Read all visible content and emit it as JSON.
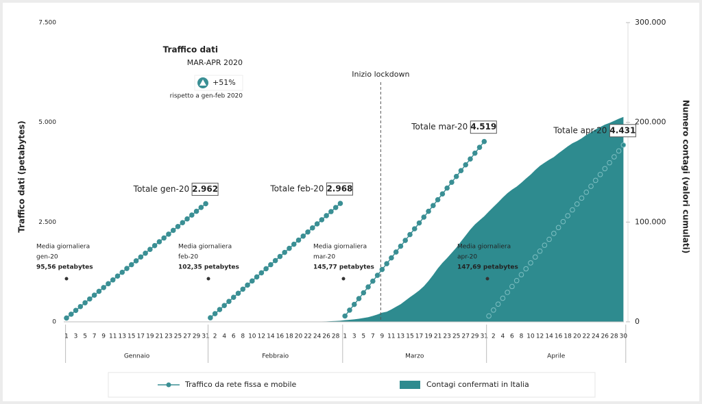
{
  "chart_data": {
    "type": "line",
    "inset": {
      "title": "Traffico dati",
      "subtitle": "MAR-APR 2020",
      "change": "+51%",
      "note": "rispetto a gen-feb 2020"
    },
    "y_label": "Traffico dati (petabytes)",
    "y2_label": "Numero contagi (valori cumulati)",
    "ylim": [
      0,
      7500
    ],
    "yticks": [
      0,
      {
        "value": 2500,
        "label": "2.500"
      },
      {
        "value": 5000,
        "label": "5.000"
      },
      {
        "value": 7500,
        "label": "7.500"
      }
    ],
    "y2lim": [
      0,
      300000
    ],
    "y2ticks": [
      0,
      {
        "value": 100000,
        "label": "100.000"
      },
      {
        "value": 200000,
        "label": "200.000"
      },
      {
        "value": 300000,
        "label": "300.000"
      }
    ],
    "lockdown": {
      "label": "Inizio lockdown",
      "group": 2,
      "index": 8
    },
    "groups": [
      {
        "name": "Gennaio",
        "categories": [
          1,
          null,
          3,
          null,
          5,
          null,
          7,
          null,
          9,
          null,
          11,
          null,
          13,
          null,
          15,
          null,
          17,
          null,
          19,
          null,
          21,
          null,
          23,
          null,
          25,
          null,
          27,
          null,
          29,
          null,
          31
        ],
        "total": {
          "label": "Totale gen-20",
          "value": "2.962"
        },
        "average": [
          "Media giornaliera",
          "gen-20",
          "95,56  petabytes"
        ]
      },
      {
        "name": "Febbraio",
        "categories": [
          null,
          2,
          null,
          4,
          null,
          6,
          null,
          8,
          null,
          10,
          null,
          12,
          null,
          14,
          null,
          16,
          null,
          18,
          null,
          20,
          null,
          22,
          null,
          24,
          null,
          26,
          null,
          28,
          null
        ],
        "total": {
          "label": "Totale feb-20",
          "value": "2.968"
        },
        "average": [
          "Media giornaliera",
          "feb-20",
          "102,35  petabytes"
        ]
      },
      {
        "name": "Marzo",
        "categories": [
          1,
          null,
          3,
          null,
          5,
          null,
          7,
          null,
          9,
          null,
          11,
          null,
          13,
          null,
          15,
          null,
          17,
          null,
          19,
          null,
          21,
          null,
          23,
          null,
          25,
          null,
          27,
          null,
          29,
          null,
          31
        ],
        "total": {
          "label": "Totale mar-20",
          "value": "4.519"
        },
        "average": [
          "Media giornaliera",
          "mar-20",
          "145,77  petabytes"
        ]
      },
      {
        "name": "Aprile",
        "categories": [
          null,
          2,
          null,
          4,
          null,
          6,
          null,
          8,
          null,
          10,
          null,
          12,
          null,
          14,
          null,
          16,
          null,
          18,
          null,
          20,
          null,
          22,
          null,
          24,
          null,
          26,
          null,
          28,
          null,
          30
        ],
        "total": {
          "label": "Totale apr-20",
          "value": "4.431"
        },
        "average": [
          "Media giornaliera",
          "apr-20",
          "147,69  petabytes"
        ]
      }
    ],
    "series": [
      {
        "name": "Traffico da rete fissa e mobile",
        "color": "#3a8f94",
        "values": [
          [
            96,
            191,
            287,
            382,
            478,
            573,
            669,
            764,
            860,
            956,
            1051,
            1147,
            1242,
            1338,
            1433,
            1529,
            1625,
            1720,
            1816,
            1911,
            2007,
            2102,
            2198,
            2293,
            2389,
            2485,
            2580,
            2676,
            2771,
            2867,
            2962
          ],
          [
            102,
            205,
            307,
            409,
            512,
            614,
            716,
            819,
            921,
            1024,
            1126,
            1228,
            1331,
            1433,
            1535,
            1638,
            1740,
            1842,
            1945,
            2047,
            2149,
            2252,
            2354,
            2456,
            2559,
            2661,
            2763,
            2866,
            2968
          ],
          [
            146,
            292,
            437,
            583,
            729,
            875,
            1020,
            1166,
            1312,
            1458,
            1603,
            1749,
            1895,
            2041,
            2187,
            2332,
            2478,
            2624,
            2770,
            2915,
            3061,
            3207,
            3353,
            3498,
            3644,
            3790,
            3936,
            4081,
            4227,
            4373,
            4519
          ],
          [
            148,
            295,
            443,
            591,
            738,
            886,
            1034,
            1182,
            1329,
            1477,
            1625,
            1772,
            1920,
            2068,
            2215,
            2363,
            2511,
            2659,
            2806,
            2954,
            3101,
            3249,
            3397,
            3545,
            3692,
            3840,
            3988,
            4135,
            4283,
            4431
          ]
        ]
      },
      {
        "name": "Contagi confermati in Italia",
        "color": "#2e8b8f",
        "axis": "y2",
        "type": "area",
        "values": [
          [
            null,
            null,
            null,
            null,
            null,
            null,
            null,
            null,
            null,
            null,
            null,
            null,
            null,
            null,
            null,
            null,
            null,
            null,
            null,
            null,
            null,
            null,
            null,
            null,
            null,
            null,
            null,
            null,
            null,
            null,
            null
          ],
          [
            null,
            null,
            null,
            null,
            null,
            null,
            null,
            null,
            null,
            null,
            null,
            null,
            null,
            null,
            null,
            null,
            null,
            null,
            null,
            null,
            20,
            79,
            150,
            229,
            322,
            400,
            650,
            888,
            1128
          ],
          [
            1694,
            2036,
            2502,
            3089,
            3858,
            4636,
            5883,
            7375,
            9172,
            10149,
            12462,
            15113,
            17660,
            21157,
            24747,
            27980,
            31506,
            35713,
            41035,
            47021,
            53578,
            59138,
            63927,
            69176,
            74386,
            80539,
            86498,
            92472,
            97689,
            101739,
            105792
          ],
          [
            110574,
            115242,
            119827,
            124632,
            128948,
            132547,
            135586,
            139422,
            143626,
            147577,
            152271,
            156363,
            159516,
            162488,
            165155,
            168941,
            172434,
            175925,
            178972,
            181228,
            183957,
            187327,
            189973,
            192994,
            195351,
            197675,
            199414,
            201505,
            203591,
            205463
          ]
        ]
      }
    ]
  }
}
